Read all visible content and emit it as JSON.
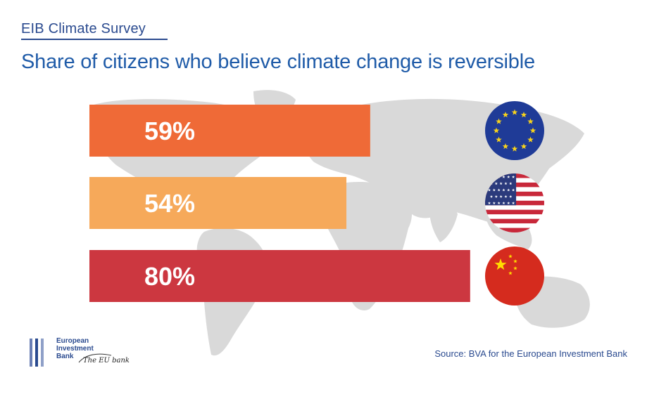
{
  "header": {
    "kicker": "EIB Climate Survey",
    "title": "Share of citizens who believe climate change is reversible"
  },
  "chart_data": {
    "type": "bar",
    "orientation": "horizontal",
    "title": "Share of citizens who believe climate change is reversible",
    "categories": [
      "EU",
      "USA",
      "China"
    ],
    "values": [
      59,
      54,
      80
    ],
    "value_labels": [
      "59%",
      "54%",
      "80%"
    ],
    "unit": "%",
    "xlim": [
      0,
      100
    ],
    "grid": false,
    "legend": "none",
    "bar_colors": [
      "#ef6a37",
      "#f6a95a",
      "#cc3740"
    ],
    "category_icons": [
      "eu-flag-icon",
      "us-flag-icon",
      "china-flag-icon"
    ]
  },
  "background": {
    "image": "world-map",
    "color": "#d8d8d8"
  },
  "footer": {
    "source": "Source: BVA for the European Investment Bank",
    "logo": {
      "lines": [
        "European",
        "Investment",
        "Bank"
      ],
      "tagline": "The EU bank",
      "icon": "eib-logo-icon",
      "colors": [
        "#6a7fb5",
        "#2a4a8f",
        "#8fa0c8"
      ]
    }
  },
  "colors": {
    "accent": "#1f5ba8",
    "text_dark": "#2a4a8f"
  }
}
